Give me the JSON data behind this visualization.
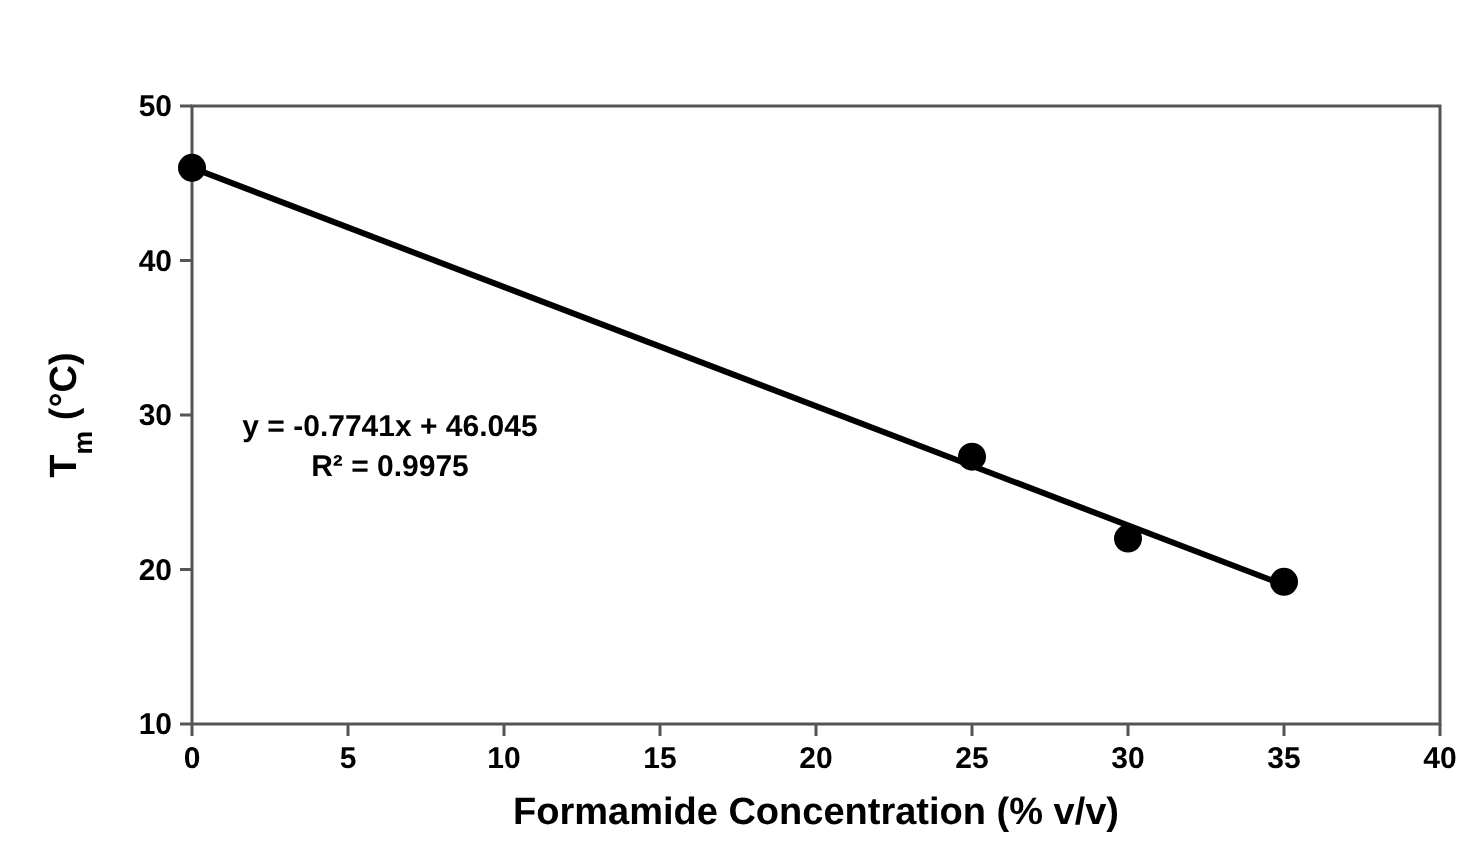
{
  "chart_data": {
    "type": "scatter",
    "xlabel": "Formamide Concentration (% v/v)",
    "ylabel": "T$_{m}$ (°C)",
    "xlim": [
      0,
      40
    ],
    "xticks": [
      0,
      5,
      10,
      15,
      20,
      25,
      30,
      35,
      40
    ],
    "ylim": [
      10,
      50
    ],
    "yticks": [
      10,
      20,
      30,
      40,
      50
    ],
    "series": [
      {
        "color": "#000000",
        "marker": "circle",
        "x": [
          0,
          25,
          30,
          35
        ],
        "values": [
          46,
          27.3,
          22,
          19.2
        ]
      },
      {
        "type": "line",
        "color": "#000000",
        "x": [
          0,
          35
        ],
        "values": [
          46,
          19
        ]
      }
    ],
    "annotations": [
      "y = -0.7741x + 46.045",
      "R² = 0.9975"
    ]
  }
}
